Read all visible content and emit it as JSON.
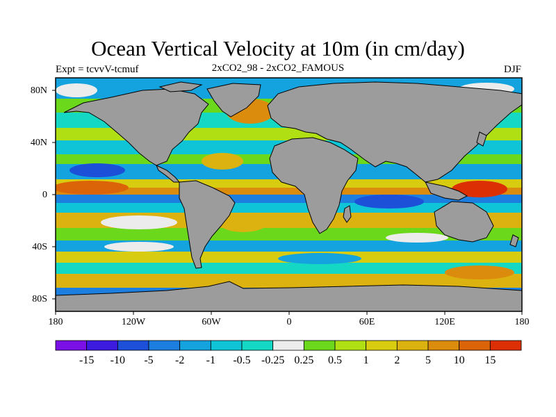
{
  "title": "Ocean Vertical Velocity at 10m (in cm/day)",
  "subtitle_left": "Expt = tcvvV-tcmuf",
  "subtitle_center": "2xCO2_98 - 2xCO2_FAMOUS",
  "subtitle_right": "DJF",
  "lat_ticks": [
    "80N",
    "40N",
    "0",
    "40S",
    "80S"
  ],
  "lon_ticks": [
    "180",
    "120W",
    "60W",
    "0",
    "60E",
    "120E",
    "180"
  ],
  "colorbar": {
    "labels": [
      "-15",
      "-10",
      "-5",
      "-2",
      "-1",
      "-0.5",
      "-0.25",
      "0.25",
      "0.5",
      "1",
      "2",
      "5",
      "10",
      "15"
    ],
    "colors": [
      "#7a10e6",
      "#3c1ae0",
      "#1c50d8",
      "#1c7ede",
      "#14a3de",
      "#10c4d8",
      "#14d8c4",
      "#ececec",
      "#6cd81c",
      "#b0e014",
      "#d8cc10",
      "#dcb210",
      "#dc8c0c",
      "#dc6408",
      "#dc3004"
    ]
  },
  "land_color": "#9c9c9c"
}
